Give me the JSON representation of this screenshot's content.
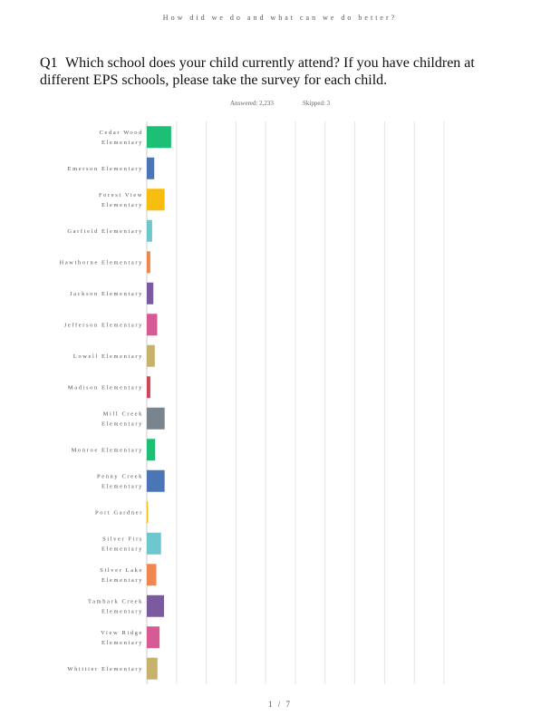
{
  "header": {
    "title": "How did we do and what can we do better?"
  },
  "question": {
    "number": "Q1",
    "text": "Which school does your child currently attend? If you have children at different EPS schools, please take the survey for each child."
  },
  "stats": {
    "answered": "Answered: 2,233",
    "skipped": "Skipped: 3"
  },
  "footer": {
    "page": "1 / 7"
  },
  "chart_data": {
    "type": "bar",
    "orientation": "horizontal",
    "grid": true,
    "xlim": [
      0,
      100
    ],
    "categories": [
      "Cedar Wood Elementary",
      "Emerson Elementary",
      "Forest View Elementary",
      "Garfield Elementary",
      "Hawthorne Elementary",
      "Jackson Elementary",
      "Jefferson Elementary",
      "Lowell Elementary",
      "Madison Elementary",
      "Mill Creek Elementary",
      "Monroe Elementary",
      "Penny Creek Elementary",
      "Port Gardner",
      "Silver Firs Elementary",
      "Silver Lake Elementary",
      "Tambark Creek Elementary",
      "View Ridge Elementary",
      "Whittier Elementary"
    ],
    "values": [
      8.2,
      2.5,
      6.0,
      1.8,
      1.2,
      2.2,
      3.5,
      2.7,
      1.2,
      6.0,
      2.8,
      6.0,
      0.4,
      4.8,
      3.2,
      5.8,
      4.3,
      3.6
    ],
    "colors": [
      "#1cbf73",
      "#4a76b8",
      "#f7bd0f",
      "#6ec7cd",
      "#f0874f",
      "#7b5a9e",
      "#d65a93",
      "#c7b26d",
      "#d24458",
      "#7a848c",
      "#1cbf73",
      "#4a76b8",
      "#f7bd0f",
      "#6ec7cd",
      "#f0874f",
      "#7b5a9e",
      "#d65a93",
      "#c7b26d"
    ]
  }
}
